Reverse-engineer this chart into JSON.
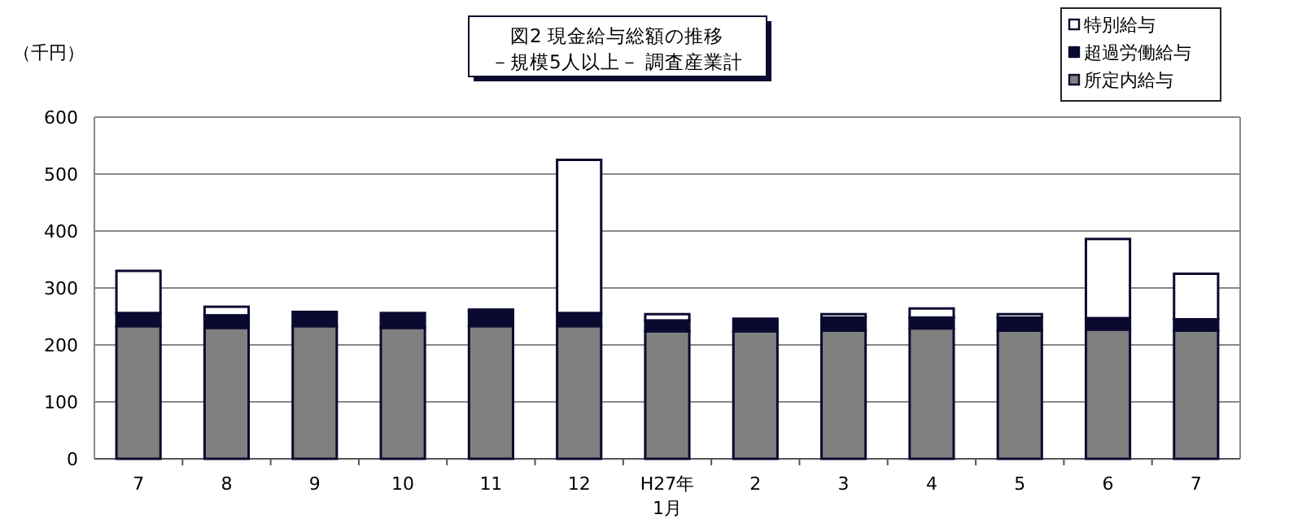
{
  "chart_data": {
    "type": "bar",
    "stacked": true,
    "title": "図2  現金給与総額の推移",
    "subtitle": "－規模5人以上－  調査産業計",
    "ylabel": "（千円）",
    "categories": [
      "7",
      "8",
      "9",
      "10",
      "11",
      "12",
      "H27年\n1月",
      "2",
      "3",
      "4",
      "5",
      "6",
      "7"
    ],
    "series": [
      {
        "name": "所定内給与",
        "color": "#808080",
        "values": [
          233,
          230,
          233,
          230,
          233,
          233,
          224,
          224,
          225,
          229,
          225,
          227,
          225
        ]
      },
      {
        "name": "超過労働給与",
        "color": "#0a0a30",
        "values": [
          23,
          22,
          25,
          26,
          25,
          23,
          19,
          22,
          23,
          19,
          23,
          20,
          20
        ]
      },
      {
        "name": "特別給与",
        "color": "#ffffff",
        "values": [
          74,
          15,
          0,
          0,
          4,
          269,
          11,
          0,
          6,
          16,
          6,
          139,
          80
        ]
      }
    ],
    "ylim": [
      0,
      600
    ],
    "yticks": [
      0,
      100,
      200,
      300,
      400,
      500,
      600
    ],
    "grid": "y",
    "legend": "top right"
  }
}
